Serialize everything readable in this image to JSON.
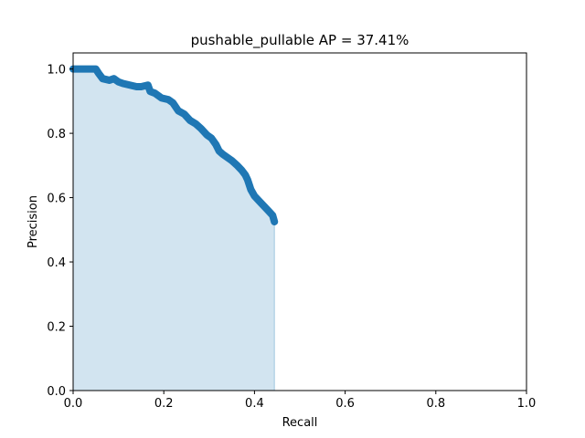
{
  "chart_data": {
    "type": "area",
    "title": "pushable_pullable AP = 37.41%",
    "xlabel": "Recall",
    "ylabel": "Precision",
    "xlim": [
      0.0,
      1.0
    ],
    "ylim": [
      0.0,
      1.05
    ],
    "xticks": [
      "0.0",
      "0.2",
      "0.4",
      "0.6",
      "0.8",
      "1.0"
    ],
    "yticks": [
      "0.0",
      "0.2",
      "0.4",
      "0.6",
      "0.8",
      "1.0"
    ],
    "grid": false,
    "legend": "none",
    "colors": {
      "line": "#1f77b4",
      "fill": "#1f77b4",
      "fill_opacity": 0.2
    },
    "series": [
      {
        "recall": [
          0.0,
          0.02,
          0.05,
          0.057,
          0.065,
          0.08,
          0.09,
          0.1,
          0.11,
          0.125,
          0.14,
          0.15,
          0.165,
          0.17,
          0.18,
          0.195,
          0.21,
          0.22,
          0.232,
          0.245,
          0.258,
          0.27,
          0.282,
          0.295,
          0.305,
          0.315,
          0.322,
          0.33,
          0.34,
          0.35,
          0.362,
          0.372,
          0.38,
          0.385,
          0.392,
          0.4,
          0.41,
          0.42,
          0.43,
          0.44,
          0.444
        ],
        "precision": [
          1.0,
          1.0,
          1.0,
          0.985,
          0.97,
          0.965,
          0.97,
          0.96,
          0.955,
          0.95,
          0.945,
          0.945,
          0.95,
          0.93,
          0.925,
          0.91,
          0.905,
          0.895,
          0.87,
          0.86,
          0.84,
          0.83,
          0.815,
          0.795,
          0.785,
          0.765,
          0.745,
          0.735,
          0.725,
          0.715,
          0.7,
          0.685,
          0.67,
          0.655,
          0.625,
          0.605,
          0.59,
          0.575,
          0.56,
          0.545,
          0.525
        ]
      }
    ]
  }
}
